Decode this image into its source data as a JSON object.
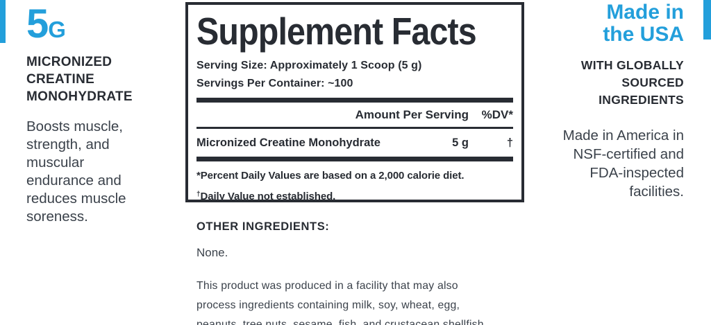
{
  "colors": {
    "accent_blue": "#239fdb",
    "dark_text": "#282c33",
    "body_text": "#3b424b"
  },
  "left_column": {
    "amount": "5",
    "amount_unit": "G",
    "heading": "MICRONIZED\nCREATINE\nMONOHYDRATE",
    "description": "Boosts muscle,\nstrength, and\nmuscular\nendurance and\nreduces muscle\nsoreness."
  },
  "supplement_facts": {
    "title": "Supplement Facts",
    "serving_size": "Serving Size: Approximately 1 Scoop (5 g)",
    "servings_per_container": "Servings Per Container: ~100",
    "amount_header": "Amount Per Serving",
    "dv_header": "%DV*",
    "rows": [
      {
        "name": "Micronized Creatine Monohydrate",
        "amount": "5 g",
        "dv": "†"
      }
    ],
    "footnote_1": "*Percent Daily Values are based on a 2,000 calorie diet.",
    "footnote_2_symbol": "†",
    "footnote_2": "Daily Value not established."
  },
  "other_ingredients": {
    "heading": "OTHER INGREDIENTS:",
    "value": "None.",
    "allergen_note": "This product was produced in a facility that may also\nprocess ingredients containing milk, soy, wheat, egg,\npeanuts, tree nuts, sesame, fish, and crustacean shellfish."
  },
  "right_column": {
    "heading": "Made in\nthe USA",
    "subheading": "WITH GLOBALLY\nSOURCED\nINGREDIENTS",
    "description": "Made in America in\nNSF-certified and\nFDA-inspected\nfacilities."
  }
}
